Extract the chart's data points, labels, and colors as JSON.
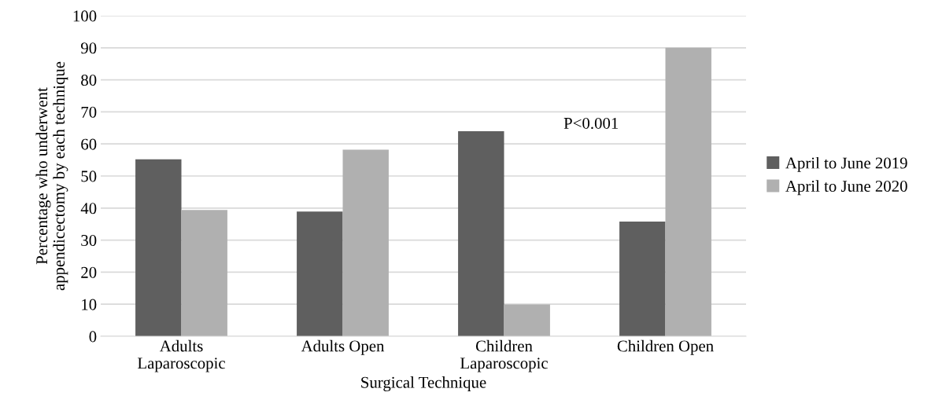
{
  "chart_data": {
    "type": "bar",
    "xlabel": "Surgical Technique",
    "ylabel": "Percentage who underwent\nappendicectomy by each technique",
    "categories": [
      "Adults\nLaparoscopic",
      "Adults Open",
      "Children\nLaparoscopic",
      "Children Open"
    ],
    "series": [
      {
        "name": "April to June 2019",
        "color": "#5f5f5f",
        "values": [
          55.2,
          38.9,
          64.0,
          35.8
        ]
      },
      {
        "name": "April to June 2020",
        "color": "#b0b0b0",
        "values": [
          39.4,
          58.2,
          9.9,
          90.0
        ]
      }
    ],
    "ylim": [
      0,
      100
    ],
    "yticks": [
      0,
      10,
      20,
      30,
      40,
      50,
      60,
      70,
      80,
      90,
      100
    ],
    "grid": "y",
    "legend": "right",
    "annotations": [
      "P<0.001"
    ]
  }
}
